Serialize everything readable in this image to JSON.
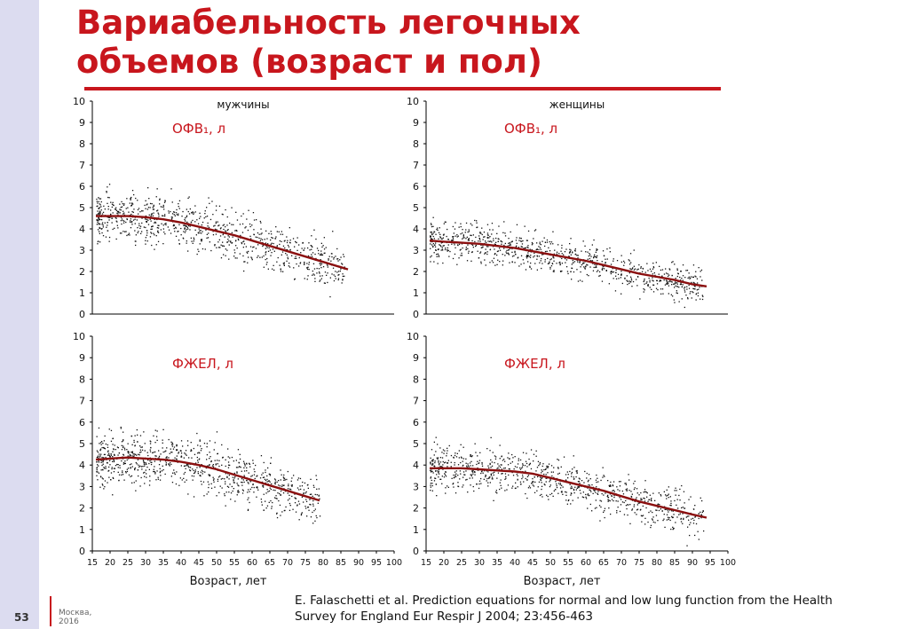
{
  "page": {
    "title": "Вариабельность легочных объемов (возраст и пол)",
    "page_number": "53",
    "place": "Москва,",
    "year": "2016",
    "citation_line1": "E. Falaschetti et al. Prediction equations for normal and low lung function from the Health",
    "citation_line2": "Survey for England Eur Respir J 2004; 23:456-463",
    "accent_color": "#c8161d",
    "sidebar_color": "#dcdcf0"
  },
  "chart_data": [
    {
      "type": "scatter",
      "panel": "top-left",
      "header": "мужчины",
      "label": "ОФВ₁, л",
      "ylim": [
        0,
        10
      ],
      "yticks": [
        0,
        1,
        2,
        3,
        4,
        5,
        6,
        7,
        8,
        9,
        10
      ],
      "xlim": [
        15,
        100
      ],
      "scatter_color": "#111111",
      "line_color": "#8b0f0f",
      "trend": {
        "x": [
          16,
          20,
          25,
          30,
          35,
          40,
          45,
          50,
          55,
          60,
          65,
          70,
          75,
          80,
          85,
          87
        ],
        "y": [
          4.6,
          4.6,
          4.6,
          4.55,
          4.45,
          4.3,
          4.1,
          3.9,
          3.7,
          3.45,
          3.2,
          2.95,
          2.7,
          2.45,
          2.2,
          2.1
        ]
      },
      "scatter_range": [
        16,
        86
      ],
      "spread": 0.55
    },
    {
      "type": "scatter",
      "panel": "top-right",
      "header": "женщины",
      "label": "ОФВ₁, л",
      "ylim": [
        0,
        10
      ],
      "yticks": [
        0,
        1,
        2,
        3,
        4,
        5,
        6,
        7,
        8,
        9,
        10
      ],
      "xlim": [
        15,
        100
      ],
      "scatter_color": "#111111",
      "line_color": "#8b0f0f",
      "trend": {
        "x": [
          16,
          20,
          25,
          30,
          35,
          40,
          45,
          50,
          55,
          60,
          65,
          70,
          75,
          80,
          85,
          90,
          94
        ],
        "y": [
          3.45,
          3.4,
          3.35,
          3.3,
          3.2,
          3.1,
          2.95,
          2.8,
          2.65,
          2.5,
          2.3,
          2.1,
          1.9,
          1.75,
          1.6,
          1.4,
          1.3
        ]
      },
      "scatter_range": [
        16,
        93
      ],
      "spread": 0.45
    },
    {
      "type": "scatter",
      "panel": "bottom-left",
      "header": "",
      "label": "ФЖЕЛ, л",
      "ylim": [
        0,
        10
      ],
      "yticks": [
        0,
        1,
        2,
        3,
        4,
        5,
        6,
        7,
        8,
        9,
        10
      ],
      "xlim": [
        15,
        100
      ],
      "xticks": [
        15,
        20,
        25,
        30,
        35,
        40,
        45,
        50,
        55,
        60,
        65,
        70,
        75,
        80,
        85,
        90,
        95,
        100
      ],
      "xtick_labels": [
        "15",
        "20",
        "25",
        "30",
        "35",
        "40",
        "45",
        "50",
        "55",
        "60",
        "65",
        "70",
        "75",
        "80",
        "85",
        "90",
        "95",
        "100"
      ],
      "xlabel": "Возраст, лет",
      "scatter_color": "#111111",
      "line_color": "#8b0f0f",
      "trend": {
        "x": [
          16,
          20,
          25,
          30,
          35,
          40,
          45,
          50,
          55,
          60,
          65,
          70,
          75,
          79
        ],
        "y": [
          4.25,
          4.3,
          4.35,
          4.3,
          4.25,
          4.15,
          4.0,
          3.8,
          3.55,
          3.3,
          3.05,
          2.8,
          2.55,
          2.35
        ]
      },
      "scatter_range": [
        16,
        79
      ],
      "spread": 0.6
    },
    {
      "type": "scatter",
      "panel": "bottom-right",
      "header": "",
      "label": "ФЖЕЛ, л",
      "ylim": [
        0,
        10
      ],
      "yticks": [
        0,
        1,
        2,
        3,
        4,
        5,
        6,
        7,
        8,
        9,
        10
      ],
      "xlim": [
        15,
        100
      ],
      "xticks": [
        15,
        20,
        25,
        30,
        35,
        40,
        45,
        50,
        55,
        60,
        65,
        70,
        75,
        80,
        85,
        90,
        95,
        100
      ],
      "xtick_labels": [
        "15",
        "20",
        "25",
        "30",
        "35",
        "40",
        "45",
        "50",
        "55",
        "60",
        "65",
        "70",
        "75",
        "80",
        "85",
        "90",
        "95",
        "100"
      ],
      "xlabel": "Возраст, лет",
      "scatter_color": "#111111",
      "line_color": "#8b0f0f",
      "trend": {
        "x": [
          16,
          20,
          25,
          30,
          35,
          40,
          45,
          50,
          55,
          60,
          65,
          70,
          75,
          80,
          85,
          90,
          94
        ],
        "y": [
          3.85,
          3.85,
          3.85,
          3.8,
          3.75,
          3.7,
          3.6,
          3.4,
          3.2,
          3.0,
          2.8,
          2.55,
          2.3,
          2.1,
          1.9,
          1.7,
          1.55
        ]
      },
      "scatter_range": [
        16,
        93
      ],
      "spread": 0.5
    }
  ]
}
